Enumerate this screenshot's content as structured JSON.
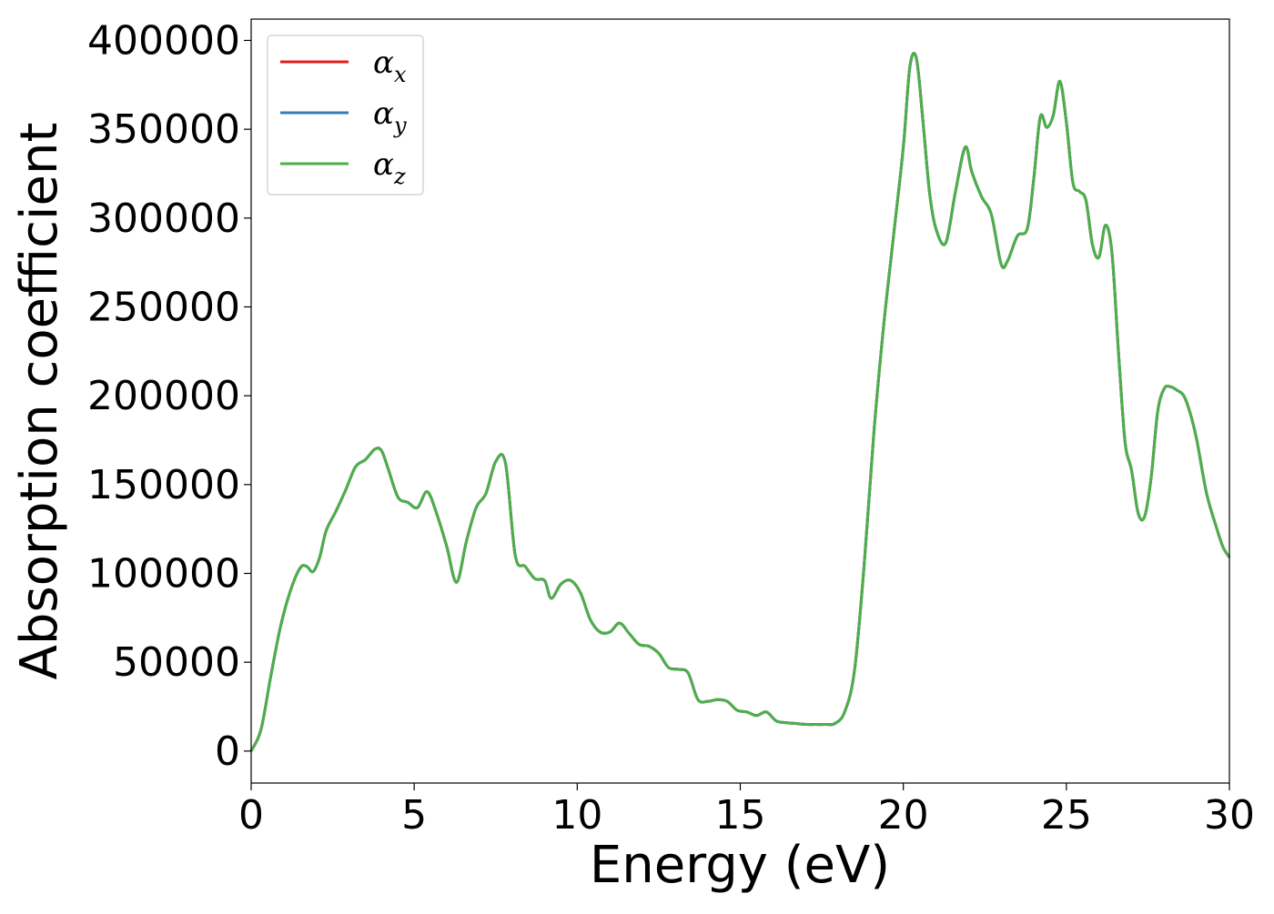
{
  "chart_data": {
    "type": "line",
    "title": "",
    "xlabel": "Energy (eV)",
    "ylabel": "Absorption coefficient",
    "xlim": [
      0,
      30
    ],
    "ylim": [
      -18000,
      412000
    ],
    "xticks": [
      0,
      5,
      10,
      15,
      20,
      25,
      30
    ],
    "yticks": [
      0,
      50000,
      100000,
      150000,
      200000,
      250000,
      300000,
      350000,
      400000
    ],
    "xtick_labels": [
      "0",
      "5",
      "10",
      "15",
      "20",
      "25",
      "30"
    ],
    "ytick_labels": [
      "0",
      "50000",
      "100000",
      "150000",
      "200000",
      "250000",
      "300000",
      "350000",
      "400000"
    ],
    "grid": false,
    "legend_position": "top-left",
    "x": [
      0,
      0.3,
      0.6,
      0.9,
      1.2,
      1.5,
      1.7,
      1.9,
      2.1,
      2.3,
      2.6,
      2.9,
      3.2,
      3.5,
      3.8,
      4.0,
      4.2,
      4.5,
      4.8,
      5.1,
      5.4,
      5.7,
      6.0,
      6.3,
      6.6,
      6.9,
      7.2,
      7.5,
      7.8,
      8.1,
      8.4,
      8.7,
      9.0,
      9.2,
      9.5,
      9.8,
      10.1,
      10.4,
      10.7,
      11.0,
      11.3,
      11.6,
      11.9,
      12.2,
      12.5,
      12.8,
      13.1,
      13.4,
      13.7,
      14.0,
      14.3,
      14.6,
      14.9,
      15.2,
      15.5,
      15.8,
      16.1,
      16.4,
      16.7,
      17.0,
      17.3,
      17.6,
      17.9,
      18.2,
      18.5,
      18.8,
      19.1,
      19.4,
      19.7,
      20.0,
      20.2,
      20.4,
      20.6,
      20.8,
      21.0,
      21.3,
      21.6,
      21.9,
      22.1,
      22.4,
      22.7,
      23.0,
      23.2,
      23.5,
      23.8,
      24.0,
      24.2,
      24.4,
      24.6,
      24.8,
      25.0,
      25.2,
      25.4,
      25.6,
      25.8,
      26.0,
      26.2,
      26.4,
      26.6,
      26.8,
      27.0,
      27.2,
      27.4,
      27.6,
      27.8,
      28.0,
      28.2,
      28.4,
      28.6,
      28.8,
      29.0,
      29.3,
      29.6,
      29.8,
      30.0
    ],
    "series": [
      {
        "name": "αx",
        "label_main": "α",
        "label_sub": "x",
        "color": "#e41a1c",
        "values": [
          0,
          12000,
          42000,
          70000,
          90000,
          103000,
          104000,
          101000,
          109000,
          124000,
          135000,
          147000,
          160000,
          164000,
          170000,
          169000,
          159000,
          143000,
          140000,
          137000,
          146000,
          133000,
          115000,
          95000,
          118000,
          137000,
          145000,
          163000,
          162000,
          110000,
          104000,
          97000,
          96000,
          86000,
          94000,
          96000,
          89000,
          74000,
          67000,
          67000,
          72000,
          66000,
          60000,
          59000,
          55000,
          47000,
          46000,
          44000,
          29000,
          28000,
          29000,
          28000,
          23000,
          22000,
          20000,
          22000,
          17000,
          16000,
          15500,
          15000,
          15000,
          15000,
          15500,
          22000,
          45000,
          105000,
          180000,
          240000,
          290000,
          340000,
          385000,
          390000,
          355000,
          315000,
          294000,
          286000,
          315000,
          340000,
          326000,
          312000,
          302000,
          274000,
          276000,
          290000,
          294000,
          322000,
          357000,
          351000,
          358000,
          377000,
          354000,
          320000,
          315000,
          310000,
          285000,
          278000,
          296000,
          280000,
          224000,
          174000,
          158000,
          134000,
          132000,
          154000,
          191000,
          204000,
          205000,
          203000,
          200000,
          190000,
          175000,
          145000,
          126000,
          115000,
          109000
        ]
      },
      {
        "name": "αy",
        "label_main": "α",
        "label_sub": "y",
        "color": "#377eb8",
        "values": [
          0,
          12000,
          42000,
          70000,
          90000,
          103000,
          104000,
          101000,
          109000,
          124000,
          135000,
          147000,
          160000,
          164000,
          170000,
          169000,
          159000,
          143000,
          140000,
          137000,
          146000,
          133000,
          115000,
          95000,
          118000,
          137000,
          145000,
          163000,
          162000,
          110000,
          104000,
          97000,
          96000,
          86000,
          94000,
          96000,
          89000,
          74000,
          67000,
          67000,
          72000,
          66000,
          60000,
          59000,
          55000,
          47000,
          46000,
          44000,
          29000,
          28000,
          29000,
          28000,
          23000,
          22000,
          20000,
          22000,
          17000,
          16000,
          15500,
          15000,
          15000,
          15000,
          15500,
          22000,
          45000,
          105000,
          180000,
          240000,
          290000,
          340000,
          385000,
          390000,
          355000,
          315000,
          294000,
          286000,
          315000,
          340000,
          326000,
          312000,
          302000,
          274000,
          276000,
          290000,
          294000,
          322000,
          357000,
          351000,
          358000,
          377000,
          354000,
          320000,
          315000,
          310000,
          285000,
          278000,
          296000,
          280000,
          224000,
          174000,
          158000,
          134000,
          132000,
          154000,
          191000,
          204000,
          205000,
          203000,
          200000,
          190000,
          175000,
          145000,
          126000,
          115000,
          109000
        ]
      },
      {
        "name": "αz",
        "label_main": "α",
        "label_sub": "z",
        "color": "#4daf4a",
        "values": [
          0,
          12000,
          42000,
          70000,
          90000,
          103000,
          104000,
          101000,
          109000,
          124000,
          135000,
          147000,
          160000,
          164000,
          170000,
          169000,
          159000,
          143000,
          140000,
          137000,
          146000,
          133000,
          115000,
          95000,
          118000,
          137000,
          145000,
          163000,
          162000,
          110000,
          104000,
          97000,
          96000,
          86000,
          94000,
          96000,
          89000,
          74000,
          67000,
          67000,
          72000,
          66000,
          60000,
          59000,
          55000,
          47000,
          46000,
          44000,
          29000,
          28000,
          29000,
          28000,
          23000,
          22000,
          20000,
          22000,
          17000,
          16000,
          15500,
          15000,
          15000,
          15000,
          15500,
          22000,
          45000,
          105000,
          180000,
          240000,
          290000,
          340000,
          385000,
          390000,
          355000,
          315000,
          294000,
          286000,
          315000,
          340000,
          326000,
          312000,
          302000,
          274000,
          276000,
          290000,
          294000,
          322000,
          357000,
          351000,
          358000,
          377000,
          354000,
          320000,
          315000,
          310000,
          285000,
          278000,
          296000,
          280000,
          224000,
          174000,
          158000,
          134000,
          132000,
          154000,
          191000,
          204000,
          205000,
          203000,
          200000,
          190000,
          175000,
          145000,
          126000,
          115000,
          109000
        ]
      }
    ]
  }
}
